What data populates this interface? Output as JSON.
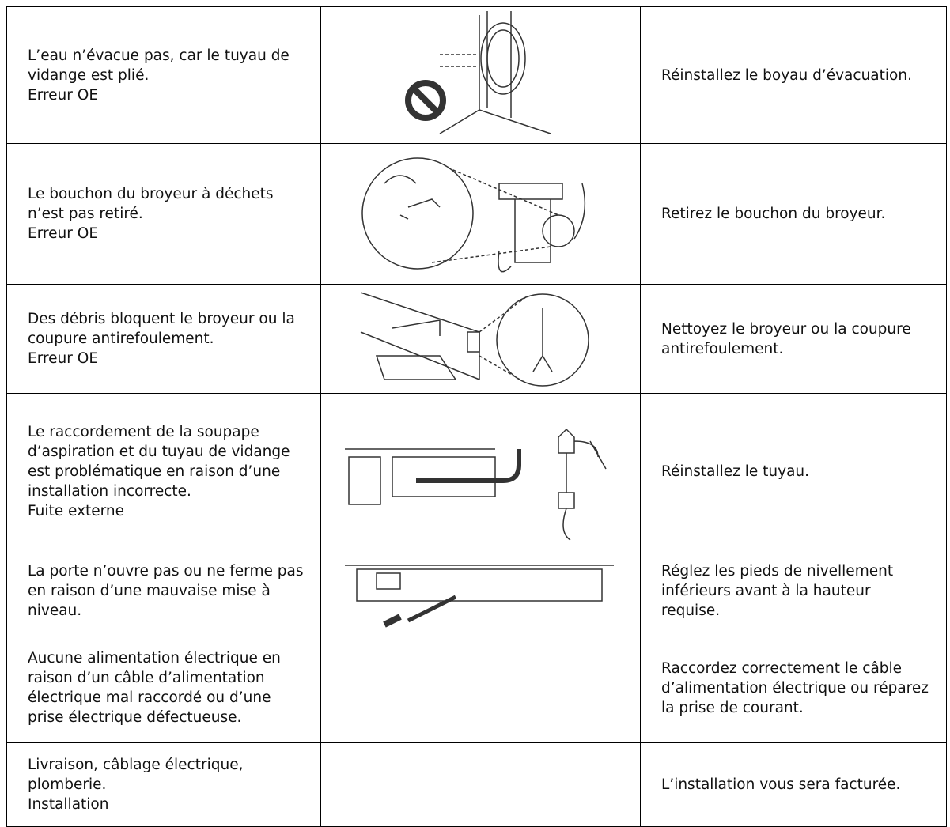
{
  "table": {
    "rows": [
      {
        "cause": [
          "L’eau n’évacue pas, car le tuyau de vidange est plié.",
          "Erreur OE"
        ],
        "solution": "Réinstallez le boyau d’évacuation."
      },
      {
        "cause": [
          "Le bouchon du broyeur à déchets n’est pas retiré.",
          "Erreur OE"
        ],
        "solution": "Retirez le bouchon du broyeur."
      },
      {
        "cause": [
          "Des débris bloquent le broyeur ou la coupure antirefoulement.",
          "Erreur OE"
        ],
        "solution": "Nettoyez le broyeur ou la coupure antirefoulement."
      },
      {
        "cause": [
          "Le raccordement de la soupape d’aspiration et du tuyau de vidange est problématique en raison d’une installation incorrecte.",
          "Fuite externe"
        ],
        "solution": "Réinstallez le tuyau."
      },
      {
        "cause": [
          "La porte n’ouvre pas ou ne ferme pas en raison d’une mauvaise mise à niveau."
        ],
        "solution": "Réglez les pieds de nivellement inférieurs avant à la hauteur requise."
      },
      {
        "cause": [
          "Aucune alimentation électrique en raison d’un câble d’alimentation électrique mal raccordé ou d’une prise électrique défectueuse."
        ],
        "solution": "Raccordez correctement le câble d’alimentation électrique ou réparez la prise de courant."
      },
      {
        "cause": [
          "Livraison, câblage électrique, plomberie.",
          "Installation"
        ],
        "solution": "L’installation vous sera facturée."
      }
    ]
  }
}
